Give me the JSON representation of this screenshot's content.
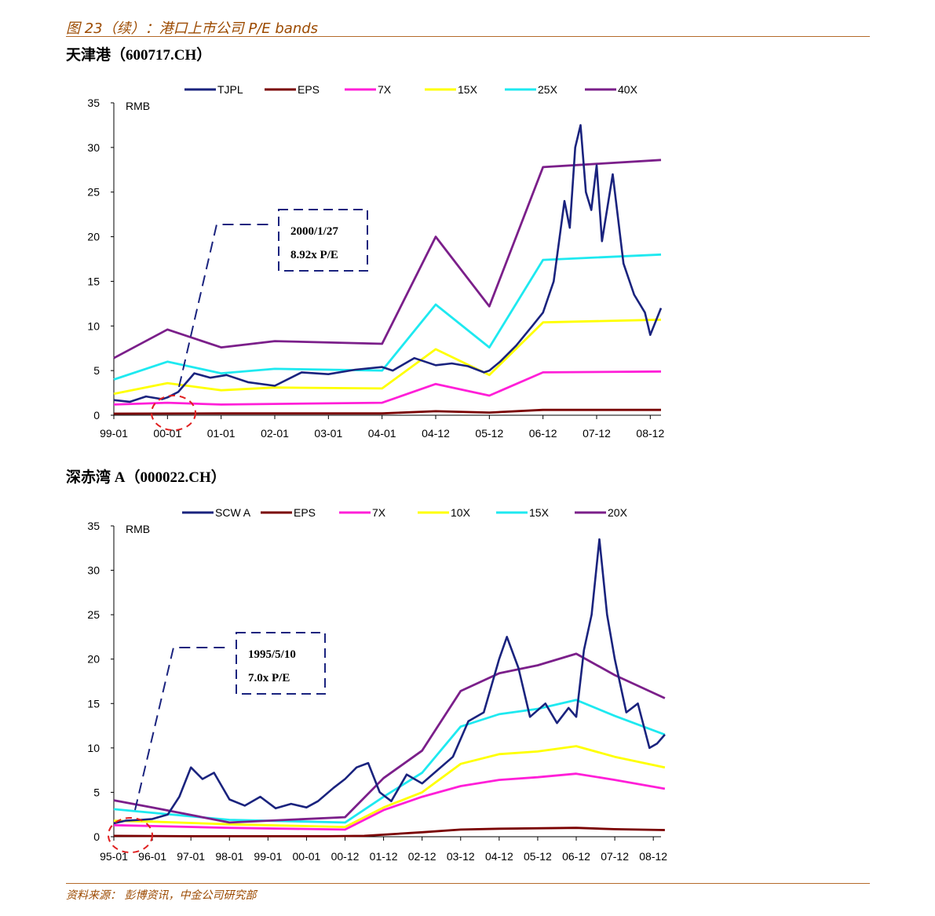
{
  "page": {
    "figure_title": "图 23（续）：港口上市公司 P/E bands",
    "source": "资料来源： 彭博资讯，中金公司研究部"
  },
  "chart_data": [
    {
      "type": "line",
      "heading": "天津港（600717.CH）",
      "ylabel": "RMB",
      "ylim": [
        0,
        35
      ],
      "yticks": [
        "0",
        "5",
        "10",
        "15",
        "20",
        "25",
        "30",
        "35"
      ],
      "xtick_labels": [
        "99-01",
        "00-01",
        "01-01",
        "02-01",
        "03-01",
        "04-01",
        "04-12",
        "05-12",
        "06-12",
        "07-12",
        "08-12"
      ],
      "annotation": {
        "date": "2000/1/27",
        "pe": "8.92x P/E"
      },
      "series": [
        {
          "name": "TJPL",
          "color": "#1a237e",
          "x": [
            0,
            0.3,
            0.6,
            0.9,
            1.0,
            1.2,
            1.5,
            1.8,
            2.1,
            2.5,
            3.0,
            3.5,
            4.0,
            4.5,
            5.0,
            5.2,
            5.6,
            6.0,
            6.3,
            6.6,
            6.9,
            7.0,
            7.2,
            7.5,
            7.8,
            8.0,
            8.2,
            8.4,
            8.5,
            8.6,
            8.7,
            8.8,
            8.9,
            9.0,
            9.1,
            9.3,
            9.5,
            9.7,
            9.9,
            10.0,
            10.2
          ],
          "values": [
            1.7,
            1.5,
            2.1,
            1.8,
            2.0,
            2.6,
            4.7,
            4.2,
            4.5,
            3.7,
            3.3,
            4.8,
            4.6,
            5.1,
            5.4,
            5.0,
            6.4,
            5.6,
            5.8,
            5.5,
            4.8,
            5.0,
            6.0,
            7.8,
            10.0,
            11.5,
            15.0,
            24.0,
            21.0,
            30.0,
            32.5,
            25.0,
            23.0,
            28.0,
            19.5,
            27.0,
            17.0,
            13.5,
            11.5,
            9.0,
            12.0
          ]
        },
        {
          "name": "EPS",
          "color": "#7a0000",
          "x": [
            0,
            2,
            4,
            5,
            6,
            7,
            8,
            10.2
          ],
          "values": [
            0.18,
            0.2,
            0.2,
            0.2,
            0.45,
            0.3,
            0.6,
            0.6
          ]
        },
        {
          "name": "7X",
          "color": "#ff1fd8",
          "x": [
            0,
            1,
            2,
            5,
            6,
            7,
            8,
            10.2
          ],
          "values": [
            1.2,
            1.4,
            1.2,
            1.4,
            3.5,
            2.2,
            4.8,
            4.9
          ]
        },
        {
          "name": "15X",
          "color": "#ffff00",
          "x": [
            0,
            1,
            2,
            3,
            5,
            6,
            7,
            8,
            10.2
          ],
          "values": [
            2.4,
            3.6,
            2.8,
            3.1,
            3.0,
            7.4,
            4.5,
            10.4,
            10.7
          ]
        },
        {
          "name": "25X",
          "color": "#1ee9f0",
          "x": [
            0,
            1,
            2,
            3,
            5,
            6,
            7,
            8,
            10.2
          ],
          "values": [
            4.0,
            6.0,
            4.7,
            5.2,
            5.0,
            12.4,
            7.6,
            17.4,
            18.0
          ]
        },
        {
          "name": "40X",
          "color": "#7b1f8a",
          "x": [
            0,
            1,
            2,
            3,
            5,
            6,
            7,
            8,
            10.2
          ],
          "values": [
            6.4,
            9.6,
            7.6,
            8.3,
            8.0,
            20.0,
            12.2,
            27.8,
            28.6
          ]
        }
      ]
    },
    {
      "type": "line",
      "heading": "深赤湾 A（000022.CH）",
      "ylabel": "RMB",
      "ylim": [
        0,
        35
      ],
      "yticks": [
        "0",
        "5",
        "10",
        "15",
        "20",
        "25",
        "30",
        "35"
      ],
      "xtick_labels": [
        "95-01",
        "96-01",
        "97-01",
        "98-01",
        "99-01",
        "00-01",
        "00-12",
        "01-12",
        "02-12",
        "03-12",
        "04-12",
        "05-12",
        "06-12",
        "07-12",
        "08-12"
      ],
      "annotation": {
        "date": "1995/5/10",
        "pe": "7.0x P/E"
      },
      "series": [
        {
          "name": "SCW A",
          "color": "#1a237e",
          "x": [
            0,
            0.3,
            0.7,
            1.0,
            1.4,
            1.7,
            2.0,
            2.3,
            2.6,
            3.0,
            3.4,
            3.8,
            4.2,
            4.6,
            5.0,
            5.3,
            5.7,
            6.0,
            6.3,
            6.6,
            6.9,
            7.2,
            7.6,
            8.0,
            8.4,
            8.8,
            9.2,
            9.6,
            10.0,
            10.2,
            10.5,
            10.8,
            11.2,
            11.5,
            11.8,
            12.0,
            12.2,
            12.4,
            12.6,
            12.8,
            13.0,
            13.3,
            13.6,
            13.9,
            14.1,
            14.3
          ],
          "values": [
            1.5,
            1.8,
            1.9,
            2.0,
            2.5,
            4.5,
            7.8,
            6.5,
            7.2,
            4.2,
            3.5,
            4.5,
            3.2,
            3.7,
            3.3,
            4.0,
            5.5,
            6.5,
            7.8,
            8.3,
            5.0,
            4.0,
            7.0,
            6.0,
            7.5,
            9.0,
            13.0,
            14.0,
            20.0,
            22.5,
            19.0,
            13.5,
            15.0,
            12.8,
            14.5,
            13.5,
            21.0,
            25.0,
            33.5,
            25.0,
            20.0,
            14.0,
            15.0,
            10.0,
            10.5,
            11.5
          ]
        },
        {
          "name": "EPS",
          "color": "#7a0000",
          "x": [
            0,
            2,
            5.5,
            6.5,
            8,
            9,
            10,
            12,
            13,
            14.3
          ],
          "values": [
            0.1,
            0.05,
            0.05,
            0.1,
            0.5,
            0.8,
            0.9,
            1.0,
            0.85,
            0.75
          ]
        },
        {
          "name": "7X",
          "color": "#ff1fd8",
          "x": [
            0,
            1,
            3,
            6,
            7,
            8,
            9,
            10,
            11,
            12,
            13,
            14.3
          ],
          "values": [
            1.3,
            1.2,
            1.0,
            0.8,
            3.0,
            4.5,
            5.7,
            6.4,
            6.7,
            7.1,
            6.4,
            5.4
          ]
        },
        {
          "name": "10X",
          "color": "#ffff00",
          "x": [
            0,
            1,
            3,
            6,
            7,
            8,
            9,
            10,
            11,
            12,
            13,
            14.3
          ],
          "values": [
            1.8,
            1.7,
            1.4,
            1.1,
            3.3,
            5.0,
            8.2,
            9.3,
            9.6,
            10.2,
            9.0,
            7.8
          ]
        },
        {
          "name": "15X",
          "color": "#1ee9f0",
          "x": [
            0,
            1,
            3,
            6,
            7,
            8,
            9,
            10,
            11,
            12,
            13,
            14.3
          ],
          "values": [
            3.1,
            2.7,
            1.9,
            1.6,
            4.5,
            7.2,
            12.4,
            13.8,
            14.4,
            15.4,
            13.6,
            11.5
          ]
        },
        {
          "name": "20X",
          "color": "#7b1f8a",
          "x": [
            0,
            1,
            3,
            6,
            7,
            8,
            9,
            10,
            11,
            12,
            13,
            14.3
          ],
          "values": [
            4.1,
            3.3,
            1.6,
            2.2,
            6.6,
            9.7,
            16.4,
            18.4,
            19.3,
            20.6,
            18.2,
            15.6
          ]
        }
      ]
    }
  ]
}
